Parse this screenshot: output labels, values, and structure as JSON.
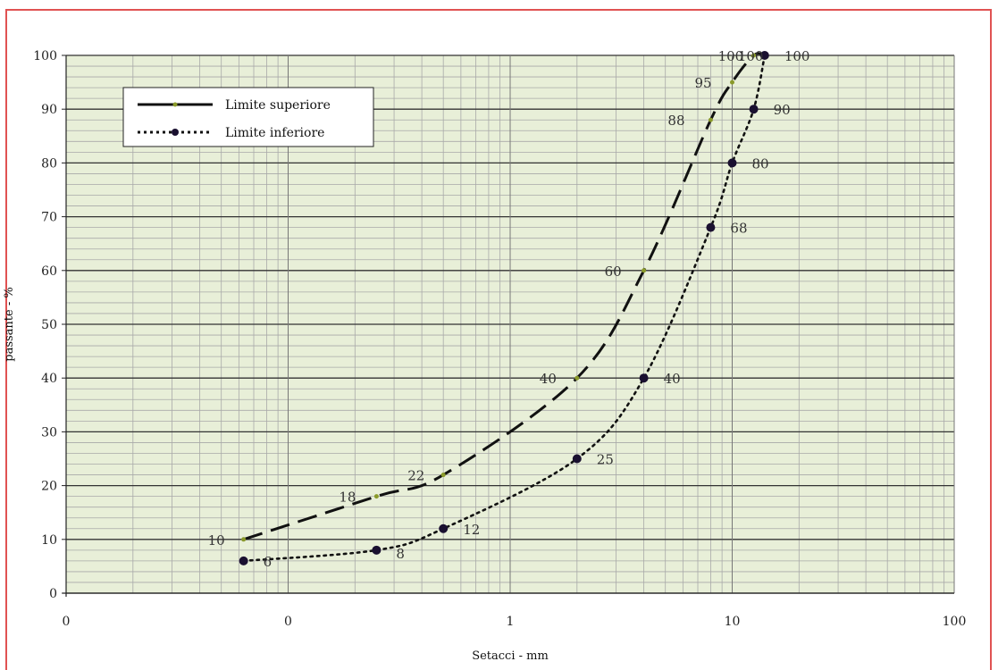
{
  "chart_data": {
    "type": "line",
    "title": "",
    "xlabel": "Setacci - mm",
    "ylabel": "passante - %",
    "xscale": "log",
    "xlim": [
      0.01,
      100
    ],
    "ylim": [
      0,
      100
    ],
    "x_tick_labels": [
      "0",
      "0",
      "1",
      "10",
      "100"
    ],
    "y_ticks": [
      0,
      10,
      20,
      30,
      40,
      50,
      60,
      70,
      80,
      90,
      100
    ],
    "grid": true,
    "legend_position": "top-left",
    "background_color": "#e8efd8",
    "series": [
      {
        "name": "Limite superiore",
        "style": "dashed",
        "color": "#111111",
        "marker_color": "#8a9a2a",
        "x": [
          0.063,
          0.25,
          0.5,
          2,
          4,
          8,
          10,
          12.5,
          14
        ],
        "y": [
          10,
          18,
          22,
          40,
          60,
          88,
          95,
          100,
          100
        ],
        "labels": [
          "10",
          "18",
          "22",
          "40",
          "60",
          "88",
          "95",
          "100",
          "100"
        ]
      },
      {
        "name": "Limite inferiore",
        "style": "dotted",
        "color": "#111111",
        "marker_color": "#1a1030",
        "x": [
          0.063,
          0.25,
          0.5,
          2,
          4,
          8,
          10,
          12.5,
          14
        ],
        "y": [
          6,
          8,
          12,
          25,
          40,
          68,
          80,
          90,
          100
        ],
        "labels": [
          "6",
          "8",
          "12",
          "25",
          "40",
          "68",
          "80",
          "90",
          "100"
        ]
      }
    ]
  }
}
